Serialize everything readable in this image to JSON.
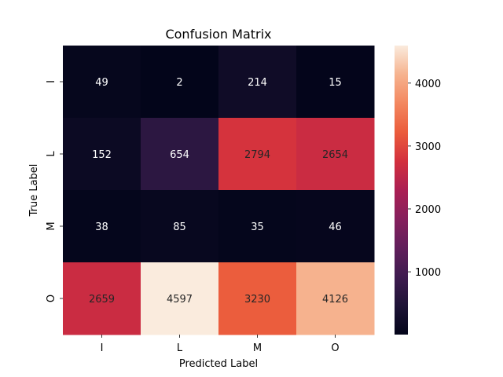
{
  "chart_data": {
    "type": "heatmap",
    "title": "Confusion Matrix",
    "xlabel": "Predicted Label",
    "ylabel": "True Label",
    "x_categories": [
      "I",
      "L",
      "M",
      "O"
    ],
    "y_categories": [
      "I",
      "L",
      "M",
      "O"
    ],
    "values": [
      [
        49,
        2,
        214,
        15
      ],
      [
        152,
        654,
        2794,
        2654
      ],
      [
        38,
        85,
        35,
        46
      ],
      [
        2659,
        4597,
        3230,
        4126
      ]
    ],
    "colormap": "rocket",
    "vmin": 2,
    "vmax": 4597,
    "colorbar_ticks": [
      1000,
      2000,
      3000,
      4000
    ],
    "grid": false,
    "annotations": true
  }
}
